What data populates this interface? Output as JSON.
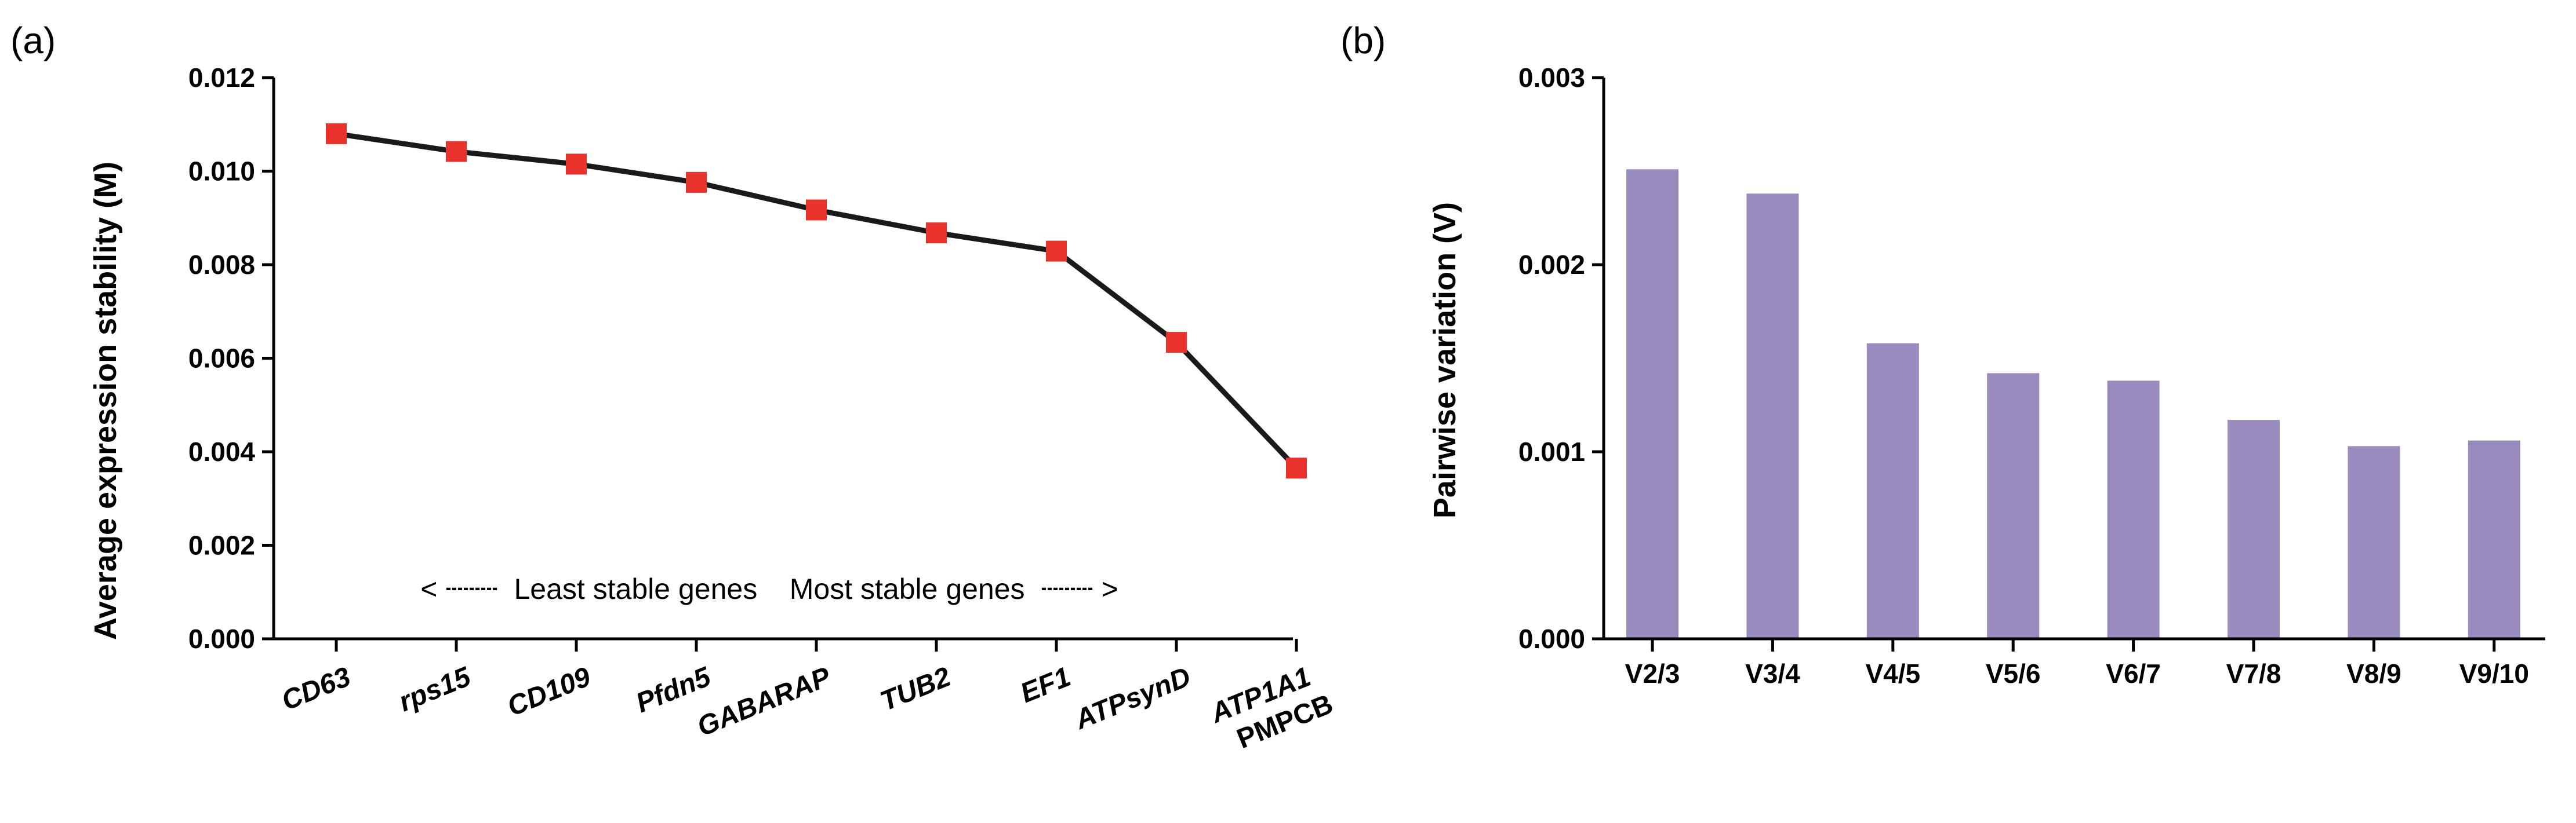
{
  "chart_data": [
    {
      "panel_label": "(a)",
      "type": "line",
      "categories": [
        [
          "CD63"
        ],
        [
          "rps15"
        ],
        [
          "CD109"
        ],
        [
          "Pfdn5"
        ],
        [
          "GABARAP"
        ],
        [
          "TUB2"
        ],
        [
          "EF1"
        ],
        [
          "ATPsynD"
        ],
        [
          "ATP1A1",
          "PMPCB"
        ]
      ],
      "values": [
        0.0108,
        0.01042,
        0.01015,
        0.00976,
        0.00917,
        0.00868,
        0.00829,
        0.00634,
        0.00365
      ],
      "ylabel": "Average expression stability (M)",
      "xlabel": "",
      "ylim": [
        0,
        0.012
      ],
      "yticks": [
        "0.000",
        "0.002",
        "0.004",
        "0.006",
        "0.008",
        "0.010",
        "0.012"
      ],
      "annotation": "< ┄┄┄  Least stable genes    Most stable genes  ┄┄┄ >",
      "line_color": "#1a1a1a",
      "marker_color": "#e8322b"
    },
    {
      "panel_label": "(b)",
      "type": "bar",
      "categories": [
        "V2/3",
        "V3/4",
        "V4/5",
        "V5/6",
        "V6/7",
        "V7/8",
        "V8/9",
        "V9/10"
      ],
      "values": [
        0.00251,
        0.00238,
        0.00158,
        0.00142,
        0.00138,
        0.00117,
        0.00103,
        0.00106
      ],
      "ylabel": "Pairwise variation (V)",
      "xlabel": "",
      "ylim": [
        0,
        0.003
      ],
      "yticks": [
        "0.000",
        "0.001",
        "0.002",
        "0.003"
      ],
      "bar_color": "#9a8bbf"
    }
  ]
}
